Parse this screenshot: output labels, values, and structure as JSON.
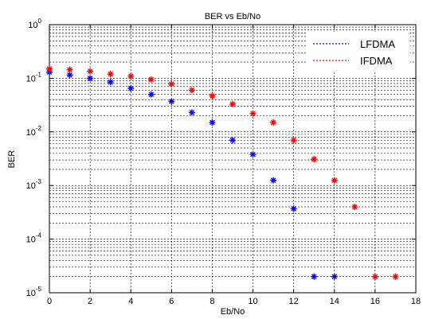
{
  "chart_data": {
    "type": "scatter",
    "title": "BER vs Eb/No",
    "xlabel": "Eb/No",
    "ylabel": "BER",
    "xlim": [
      0,
      18
    ],
    "ylim": [
      1e-05,
      1
    ],
    "yscale": "log",
    "x_ticks": [
      0,
      2,
      4,
      6,
      8,
      10,
      12,
      14,
      16,
      18
    ],
    "y_ticks": [
      {
        "value": 1e-05,
        "base": "10",
        "exp": "-5"
      },
      {
        "value": 0.0001,
        "base": "10",
        "exp": "-4"
      },
      {
        "value": 0.001,
        "base": "10",
        "exp": "-3"
      },
      {
        "value": 0.01,
        "base": "10",
        "exp": "-2"
      },
      {
        "value": 0.1,
        "base": "10",
        "exp": "-1"
      },
      {
        "value": 1,
        "base": "10",
        "exp": "0"
      }
    ],
    "grid": true,
    "legend_position": "top-right",
    "series": [
      {
        "name": "LFDMA",
        "color": "#0000ff",
        "marker": "*",
        "x": [
          0,
          1,
          2,
          3,
          4,
          5,
          6,
          7,
          8,
          9,
          10,
          11,
          12,
          13,
          14
        ],
        "y": [
          0.13,
          0.115,
          0.1,
          0.085,
          0.065,
          0.05,
          0.037,
          0.023,
          0.015,
          0.007,
          0.0038,
          0.00125,
          0.00037,
          2e-05,
          2e-05
        ]
      },
      {
        "name": "IFDMA",
        "color": "#ff0000",
        "marker": "*",
        "x": [
          0,
          1,
          2,
          3,
          4,
          5,
          6,
          7,
          8,
          9,
          10,
          11,
          12,
          13,
          14,
          15,
          16,
          17
        ],
        "y": [
          0.15,
          0.145,
          0.135,
          0.12,
          0.11,
          0.095,
          0.078,
          0.06,
          0.047,
          0.033,
          0.022,
          0.015,
          0.007,
          0.0031,
          0.00125,
          0.0004,
          2e-05,
          2e-05
        ]
      }
    ]
  }
}
